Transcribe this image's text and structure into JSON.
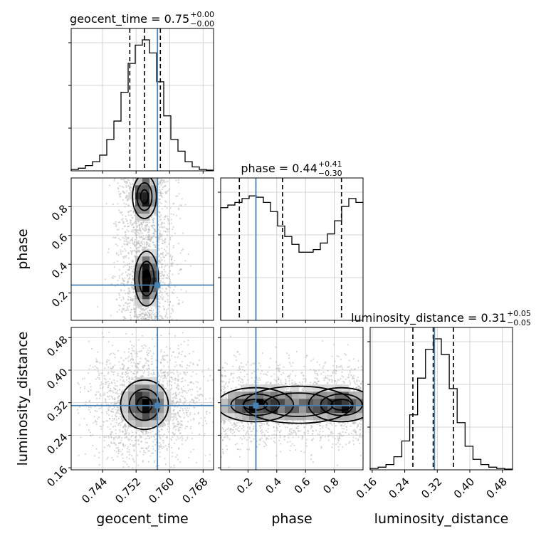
{
  "chart_data": {
    "type": "corner",
    "parameters": [
      "geocent_time",
      "phase",
      "luminosity_distance"
    ],
    "axis_labels": {
      "geocent_time": "geocent_time",
      "phase": "phase",
      "luminosity_distance": "luminosity_distance"
    },
    "ranges": {
      "geocent_time": [
        0.7365,
        0.7705
      ],
      "phase": [
        0.01,
        1.0
      ],
      "luminosity_distance": [
        0.155,
        0.505
      ]
    },
    "ticks": {
      "geocent_time": [
        "0.744",
        "0.752",
        "0.760",
        "0.768"
      ],
      "phase": [
        "0.2",
        "0.4",
        "0.6",
        "0.8"
      ],
      "luminosity_distance": [
        "0.16",
        "0.24",
        "0.32",
        "0.40",
        "0.48"
      ]
    },
    "truths": {
      "geocent_time": 0.7571,
      "phase": 0.255,
      "luminosity_distance": 0.313
    },
    "quantiles": {
      "geocent_time": [
        0.7505,
        0.754,
        0.7578
      ],
      "phase": [
        0.14,
        0.44,
        0.85
      ],
      "luminosity_distance": [
        0.26,
        0.31,
        0.36
      ]
    },
    "titles": {
      "geocent_time": {
        "name": "geocent_time",
        "value": "0.75",
        "plus": "+0.00",
        "minus": "−0.00"
      },
      "phase": {
        "name": "phase",
        "value": "0.44",
        "plus": "+0.41",
        "minus": "−0.30"
      },
      "luminosity_distance": {
        "name": "luminosity_distance",
        "value": "0.31",
        "plus": "+0.05",
        "minus": "−0.05"
      }
    },
    "histograms": {
      "geocent_time": [
        0.01,
        0.02,
        0.04,
        0.07,
        0.12,
        0.24,
        0.38,
        0.6,
        0.82,
        0.96,
        1.0,
        0.9,
        0.68,
        0.42,
        0.24,
        0.15,
        0.07,
        0.03,
        0.01,
        0.005
      ],
      "phase": [
        0.86,
        0.88,
        0.9,
        0.93,
        0.95,
        0.94,
        0.9,
        0.83,
        0.72,
        0.64,
        0.58,
        0.52,
        0.52,
        0.54,
        0.59,
        0.66,
        0.76,
        0.87,
        0.93,
        0.9
      ],
      "luminosity_distance": [
        0.01,
        0.02,
        0.04,
        0.1,
        0.22,
        0.42,
        0.7,
        0.92,
        1.0,
        0.88,
        0.62,
        0.36,
        0.18,
        0.08,
        0.04,
        0.02,
        0.01,
        0.005
      ]
    },
    "grid": true,
    "colors": {
      "truth": "#4682b4",
      "line": "#000000",
      "scatter": "#b0b0b0",
      "grid": "#c8c8c8"
    }
  }
}
